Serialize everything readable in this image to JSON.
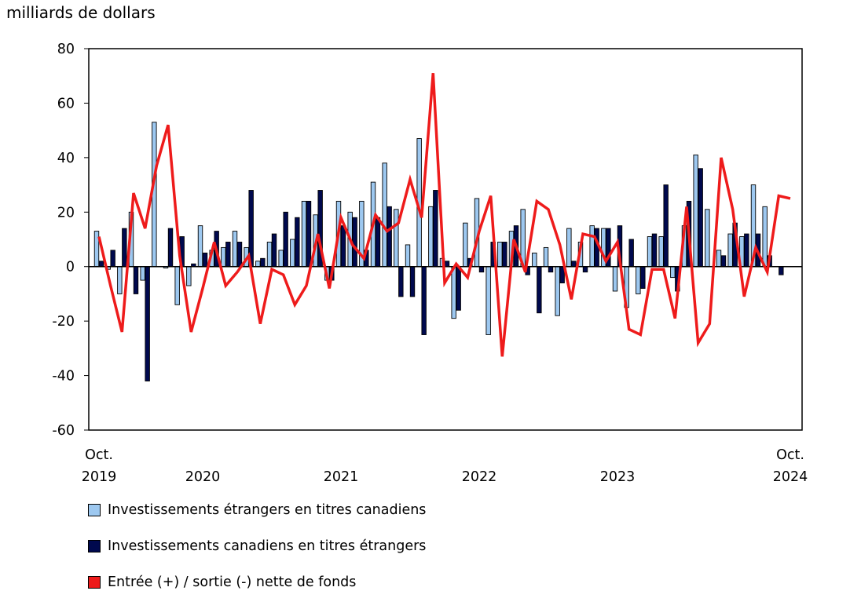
{
  "unit_label": "milliards de dollars",
  "colors": {
    "foreign": "#9dc8f0",
    "canadian": "#00094e",
    "net": "#ee1b1b"
  },
  "chart_data": {
    "type": "bar",
    "ylim": [
      -60,
      80
    ],
    "yticks": [
      -60,
      -40,
      -20,
      0,
      20,
      40,
      60,
      80
    ],
    "grid": false,
    "legend_position": "bottom-left",
    "x_axis_labels": [
      {
        "index": 0,
        "line1": "Oct.",
        "line2": "2019"
      },
      {
        "index": 9,
        "line1": "",
        "line2": "2020"
      },
      {
        "index": 21,
        "line1": "",
        "line2": "2021"
      },
      {
        "index": 33,
        "line1": "",
        "line2": "2022"
      },
      {
        "index": 45,
        "line1": "",
        "line2": "2023"
      },
      {
        "index": 60,
        "line1": "Oct.",
        "line2": "2024"
      }
    ],
    "series": [
      {
        "name": "Investissements étrangers en titres canadiens",
        "type": "bar",
        "color": "#9dc8f0",
        "values": [
          13,
          -1,
          -10,
          20,
          -5,
          53,
          -0.5,
          -14,
          -7,
          15,
          6,
          7,
          13,
          7,
          2,
          9,
          6,
          10,
          24,
          19,
          -5,
          24,
          20,
          24,
          31,
          38,
          21,
          8,
          47,
          22,
          3,
          -19,
          16,
          25,
          -25,
          9,
          13,
          21,
          5,
          7,
          -18,
          14,
          9,
          15,
          14,
          -9,
          -15,
          -10,
          11,
          11,
          -4,
          15,
          41,
          21,
          6,
          12,
          11,
          30,
          22,
          0,
          0
        ],
        "note": "61 monthly periods; Oct 2019 to Oct 2024"
      },
      {
        "name": "Investissements canadiens en titres étrangers",
        "type": "bar",
        "color": "#00094e",
        "values": [
          2,
          6,
          14,
          -10,
          -42,
          0,
          14,
          11,
          1,
          5,
          13,
          9,
          9,
          28,
          3,
          12,
          20,
          18,
          24,
          28,
          -5,
          15,
          18,
          6,
          18,
          22,
          -11,
          -11,
          -25,
          28,
          2,
          -16,
          3,
          -2,
          9,
          9,
          15,
          -3,
          -17,
          -2,
          -6,
          2,
          -2,
          14,
          14,
          15,
          10,
          -8,
          12,
          30,
          -9,
          24,
          36,
          0,
          4,
          16,
          12,
          12,
          4,
          -3,
          0
        ]
      },
      {
        "name": "Entrée (+) / sortie (-) nette de fonds",
        "type": "line",
        "color": "#ee1b1b",
        "values": [
          11,
          -7,
          -24,
          27,
          14,
          37,
          52,
          4,
          -24,
          -8,
          9,
          -7,
          -2,
          4,
          -21,
          -1,
          -3,
          -14,
          -7,
          12,
          -8,
          18,
          8,
          3,
          19,
          13,
          16,
          32,
          18,
          71,
          -6,
          1,
          -4,
          13,
          26,
          -33,
          10,
          -2,
          24,
          21,
          8,
          -12,
          12,
          11,
          2,
          9,
          -23,
          -25,
          -1,
          -1,
          -19,
          22,
          -28,
          -21,
          40,
          21,
          -11,
          7,
          -2,
          26,
          25
        ]
      }
    ]
  },
  "legend": [
    {
      "label": "Investissements étrangers en titres canadiens",
      "color": "#9dc8f0"
    },
    {
      "label": "Investissements canadiens en titres étrangers",
      "color": "#00094e"
    },
    {
      "label": "Entrée (+) / sortie (-) nette de fonds",
      "color": "#ee1b1b"
    }
  ]
}
